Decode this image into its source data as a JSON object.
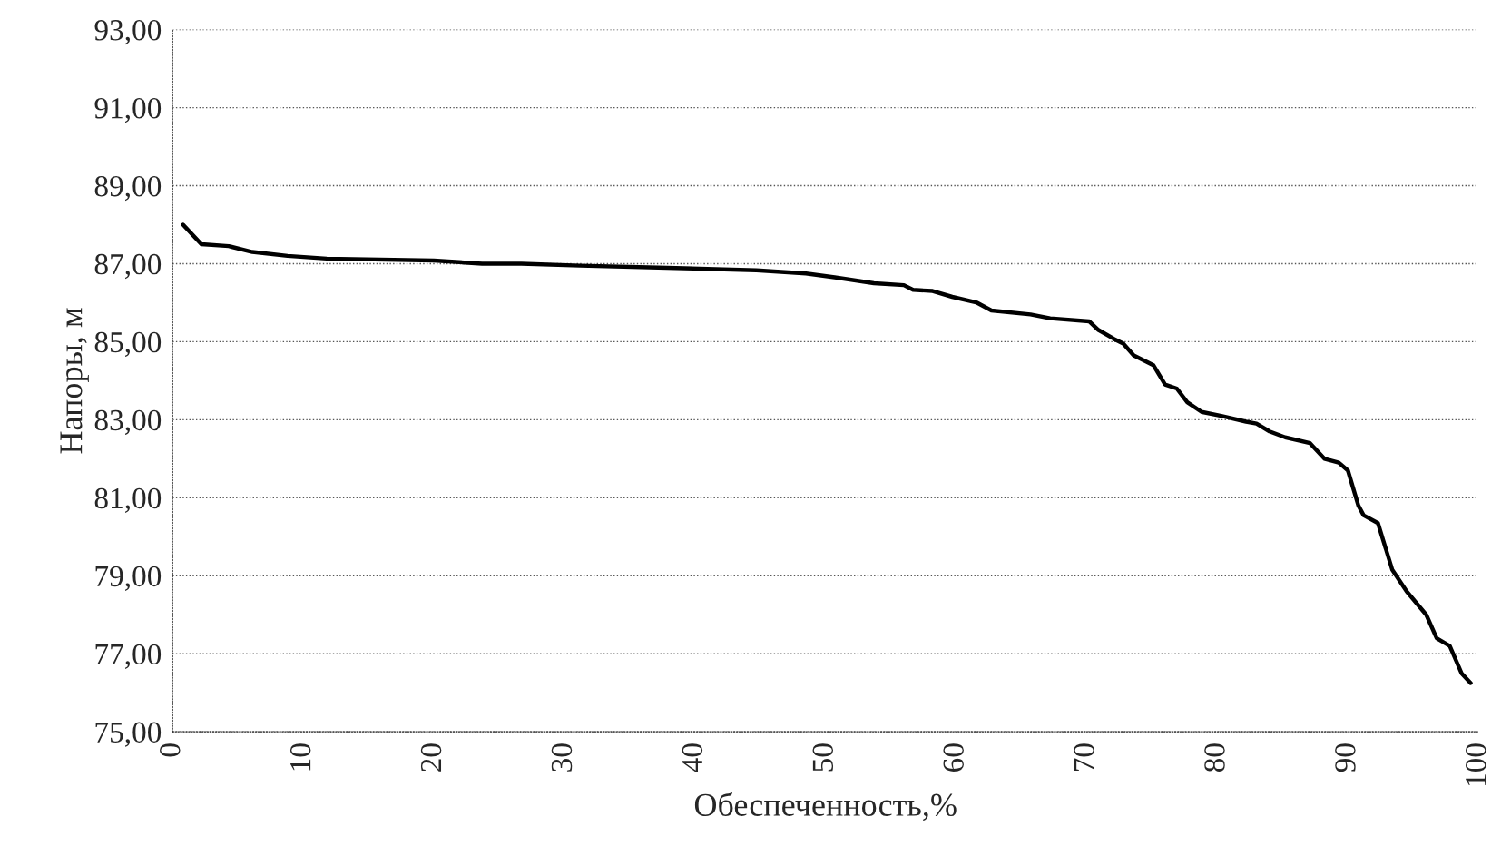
{
  "chart_data": {
    "type": "line",
    "xlabel": "Обеспеченность,%",
    "ylabel": "Напоры, м",
    "xlim": [
      0,
      100
    ],
    "xticks": [
      0,
      10,
      20,
      30,
      40,
      50,
      60,
      70,
      80,
      90,
      100
    ],
    "ylim": [
      75,
      93
    ],
    "yticks": [
      {
        "value": 75,
        "label": "75,00"
      },
      {
        "value": 77,
        "label": "77,00"
      },
      {
        "value": 79,
        "label": "79,00"
      },
      {
        "value": 81,
        "label": "81,00"
      },
      {
        "value": 83,
        "label": "83,00"
      },
      {
        "value": 85,
        "label": "85,00"
      },
      {
        "value": 87,
        "label": "87,00"
      },
      {
        "value": 89,
        "label": "89,00"
      },
      {
        "value": 91,
        "label": "91,00"
      },
      {
        "value": 93,
        "label": "93,00"
      }
    ],
    "grid": "y",
    "marker": "none",
    "line_style": "solid",
    "series": [
      {
        "color": "#000000",
        "x": [
          0.8,
          2.2,
          4.3,
          6.1,
          8.8,
          11.8,
          20,
          23.7,
          26.7,
          31.2,
          37.2,
          44.7,
          48.5,
          50.7,
          53.7,
          56,
          56.7,
          58.2,
          59.7,
          61.6,
          62.7,
          65.7,
          67.2,
          70.2,
          70.9,
          72.1,
          72.8,
          73.6,
          75.1,
          76,
          76.9,
          77.7,
          78.8,
          80.3,
          82.2,
          83,
          84,
          85.2,
          87.1,
          88.2,
          89.3,
          90,
          90.8,
          91.2,
          92.3,
          93.4,
          94.5,
          96,
          96.8,
          97.8,
          98.7,
          99.4
        ],
        "values": [
          88.0,
          87.5,
          87.45,
          87.3,
          87.2,
          87.13,
          87.08,
          87.0,
          87.0,
          86.95,
          86.9,
          86.83,
          86.75,
          86.65,
          86.5,
          86.45,
          86.33,
          86.3,
          86.15,
          86.0,
          85.8,
          85.7,
          85.6,
          85.52,
          85.3,
          85.07,
          84.95,
          84.65,
          84.4,
          83.9,
          83.8,
          83.45,
          83.2,
          83.1,
          82.95,
          82.9,
          82.7,
          82.55,
          82.4,
          82.0,
          81.9,
          81.7,
          80.8,
          80.55,
          80.35,
          79.15,
          78.6,
          78.0,
          77.4,
          77.2,
          76.5,
          76.25
        ]
      }
    ]
  }
}
